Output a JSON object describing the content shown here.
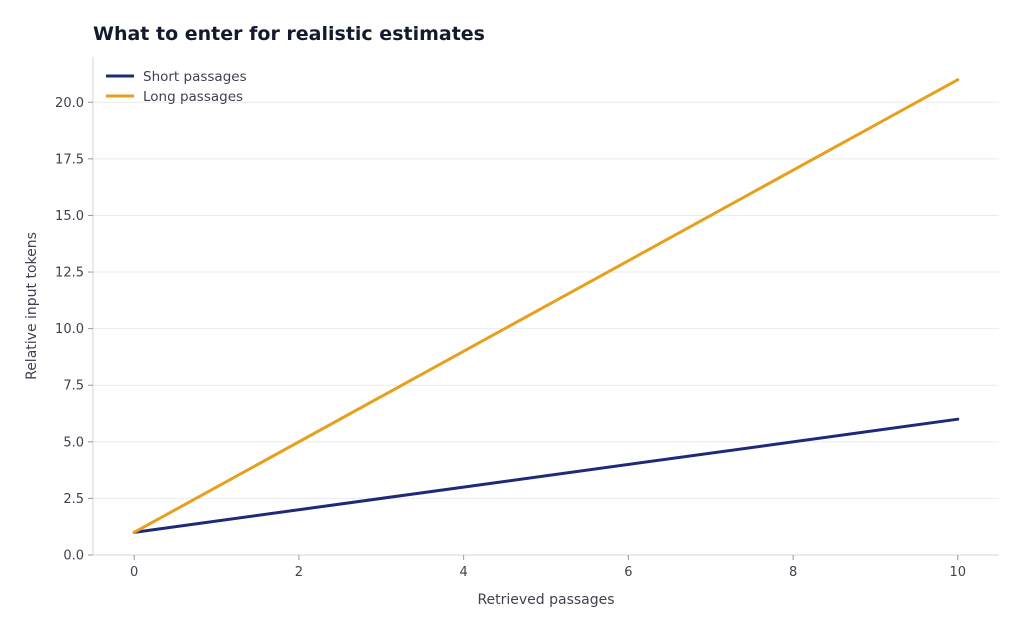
{
  "chart_data": {
    "type": "line",
    "title": "What to enter for realistic estimates",
    "xlabel": "Retrieved passages",
    "ylabel": "Relative input tokens",
    "xlim": [
      -0.5,
      10.5
    ],
    "ylim": [
      0,
      22
    ],
    "x_ticks": [
      0,
      2,
      4,
      6,
      8,
      10
    ],
    "x_tick_labels": [
      "0",
      "2",
      "4",
      "6",
      "8",
      "10"
    ],
    "y_ticks": [
      0,
      2.5,
      5,
      7.5,
      10,
      12.5,
      15,
      17.5,
      20
    ],
    "y_tick_labels": [
      "0.0",
      "2.5",
      "5.0",
      "7.5",
      "10.0",
      "12.5",
      "15.0",
      "17.5",
      "20.0"
    ],
    "grid": "horizontal",
    "legend_position": "top-left",
    "series": [
      {
        "name": "Short passages",
        "color": "#1e2a78",
        "x": [
          0,
          10
        ],
        "y": [
          1,
          6
        ]
      },
      {
        "name": "Long passages",
        "color": "#e6a01e",
        "x": [
          0,
          10
        ],
        "y": [
          1,
          21
        ]
      }
    ]
  }
}
